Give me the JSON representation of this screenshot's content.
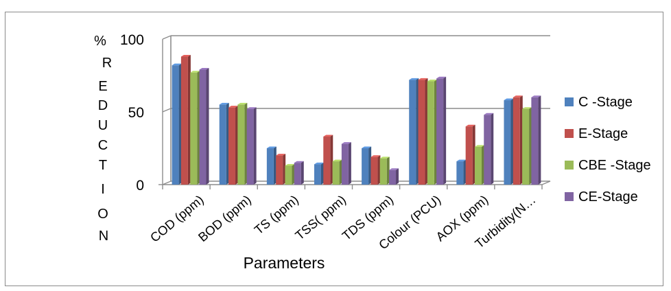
{
  "chart_data": {
    "type": "bar",
    "style": "3d-clustered-column",
    "title": "",
    "ylabel_chars": [
      "%",
      "R",
      "E",
      "D",
      "U",
      "C",
      "T",
      "I",
      "O",
      "N"
    ],
    "xlabel": "Parameters",
    "ylim": [
      0,
      100
    ],
    "yticks": [
      "0",
      "50",
      "100"
    ],
    "ytick_values": [
      0,
      50,
      100
    ],
    "grid": true,
    "legend_position": "right",
    "categories": [
      "COD (ppm)",
      "BOD (ppm)",
      "TS (ppm)",
      "TSS( ppm)",
      "TDS (ppm)",
      "Colour (PCU)",
      "AOX (ppm)",
      "Turbidity(N…"
    ],
    "series": [
      {
        "name": "C -Stage",
        "color": "#4f81bd",
        "values": [
          82,
          55,
          25,
          14,
          25,
          72,
          16,
          58
        ]
      },
      {
        "name": "E-Stage",
        "color": "#c0504d",
        "values": [
          88,
          53,
          20,
          33,
          19,
          72,
          40,
          60
        ]
      },
      {
        "name": "CBE -Stage",
        "color": "#9bbb59",
        "values": [
          77,
          55,
          13,
          16,
          18,
          71,
          26,
          52
        ]
      },
      {
        "name": "CE-Stage",
        "color": "#8064a2",
        "values": [
          79,
          52,
          15,
          28,
          10,
          73,
          48,
          60
        ]
      }
    ]
  }
}
